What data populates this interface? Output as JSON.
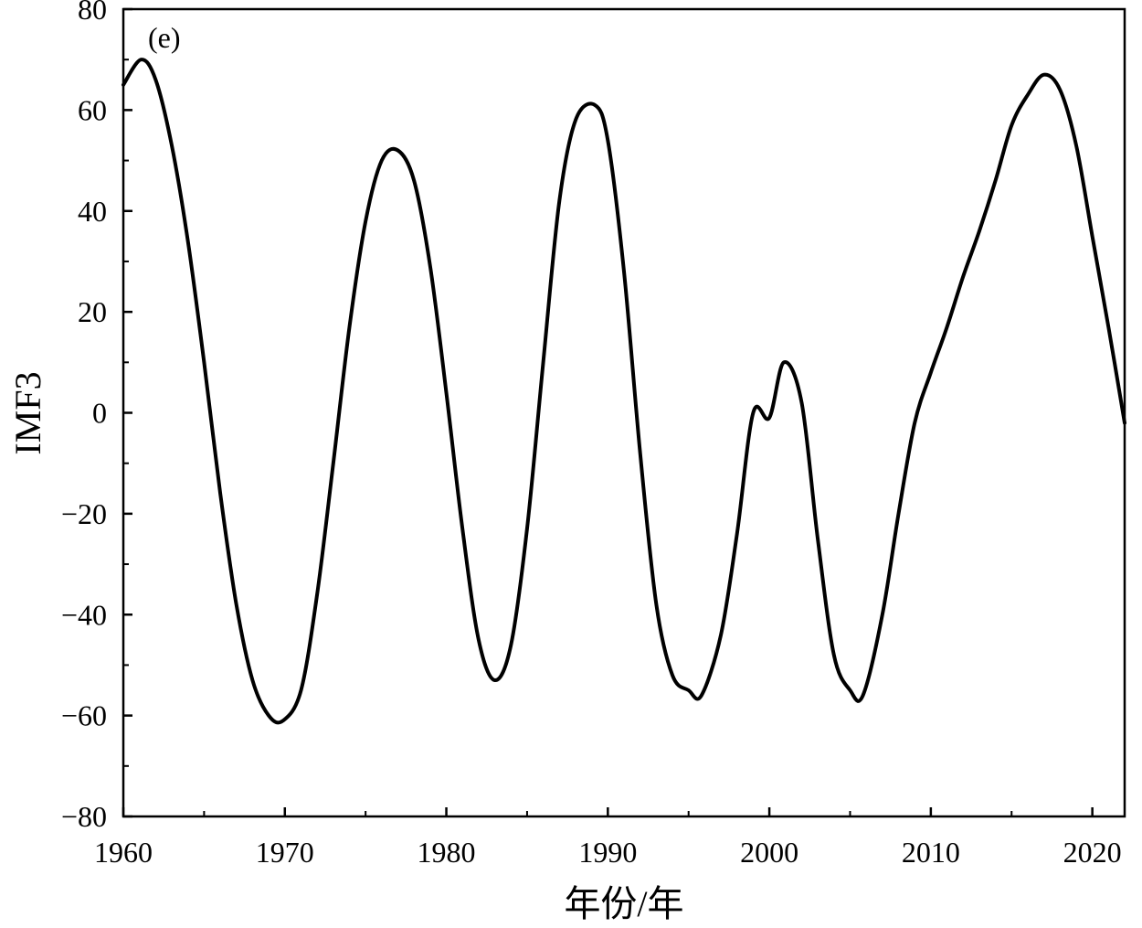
{
  "chart_data": {
    "type": "line",
    "panel_label": "(e)",
    "xlabel": "年份/年",
    "ylabel": "IMF3",
    "xlim": [
      1960,
      2022
    ],
    "ylim": [
      -80,
      80
    ],
    "x_ticks": [
      1960,
      1970,
      1980,
      1990,
      2000,
      2010,
      2020
    ],
    "x_tick_labels": [
      "1960",
      "1970",
      "1980",
      "1990",
      "2000",
      "2010",
      "2020"
    ],
    "y_ticks": [
      -80,
      -60,
      -40,
      -20,
      0,
      20,
      40,
      60,
      80
    ],
    "y_tick_labels": [
      "−80",
      "−60",
      "−40",
      "−20",
      "0",
      "20",
      "40",
      "60",
      "80"
    ],
    "grid": false,
    "series": [
      {
        "color": "#000000",
        "x": [
          1960,
          1961.1,
          1962,
          1963,
          1964,
          1965,
          1966,
          1967,
          1968,
          1969,
          1969.9,
          1971,
          1972,
          1973,
          1974,
          1975,
          1976,
          1977,
          1978,
          1979,
          1980,
          1981,
          1982,
          1983,
          1984,
          1985,
          1986,
          1987,
          1988,
          1989.2,
          1990,
          1991,
          1992,
          1993,
          1994,
          1995,
          1995.8,
          1997,
          1998,
          1999,
          2000,
          2000.9,
          2002,
          2003,
          2004,
          2005,
          2005.8,
          2007,
          2008,
          2009,
          2010,
          2011,
          2012,
          2013,
          2014,
          2015,
          2016,
          2017,
          2018,
          2019,
          2020,
          2021,
          2022
        ],
        "y": [
          65,
          70,
          66,
          53,
          34,
          10,
          -16,
          -38,
          -53,
          -60,
          -61,
          -55,
          -36,
          -10,
          17,
          38,
          50,
          52,
          46,
          29,
          4,
          -23,
          -45,
          -53,
          -46,
          -23,
          10,
          42,
          58,
          61,
          54,
          28,
          -8,
          -38,
          -52,
          -55,
          -56,
          -44,
          -24,
          0,
          -1,
          10,
          2,
          -25,
          -48,
          -55,
          -56,
          -40,
          -20,
          -2,
          8,
          17,
          27,
          36,
          46,
          57,
          63,
          67,
          64,
          53,
          35,
          17,
          -2
        ]
      }
    ]
  }
}
